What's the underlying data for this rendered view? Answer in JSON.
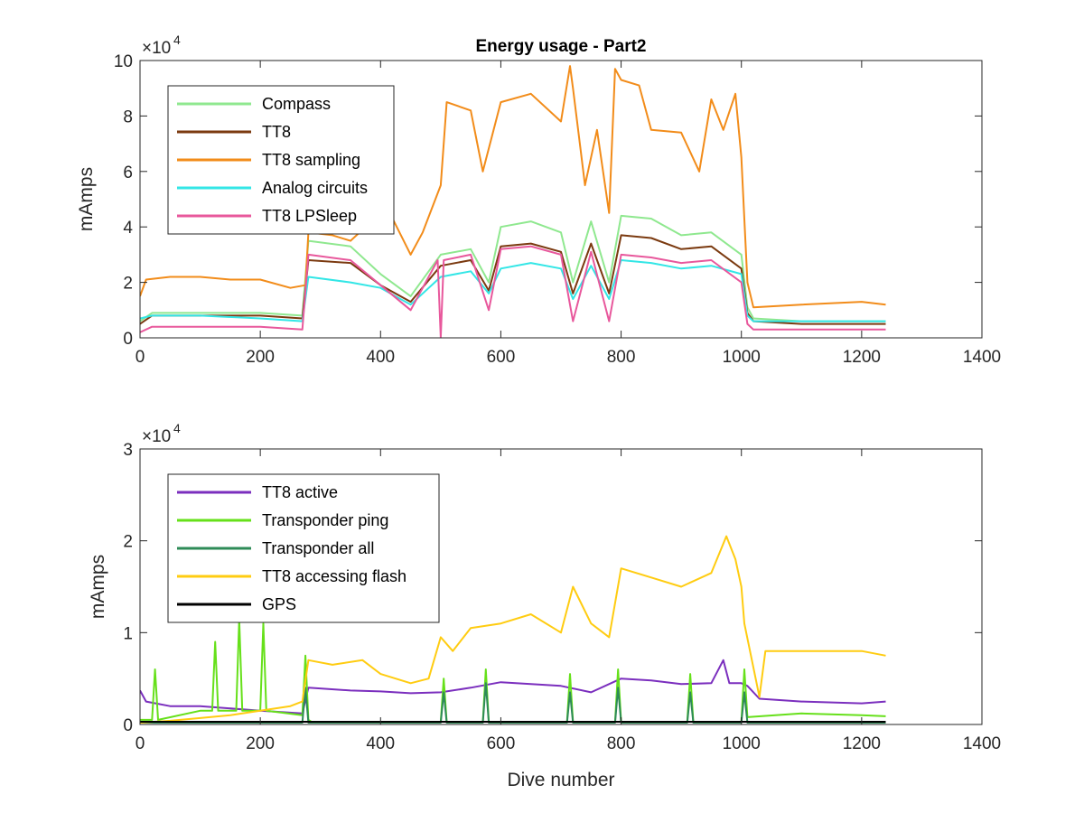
{
  "chart_data": [
    {
      "type": "line",
      "title": "Energy usage - Part2",
      "xlabel": "",
      "ylabel": "mAmps",
      "xlim": [
        0,
        1400
      ],
      "ylim": [
        0,
        100000
      ],
      "xticks": [
        0,
        200,
        400,
        600,
        800,
        1000,
        1200,
        1400
      ],
      "yticks": [
        0,
        20000,
        40000,
        60000,
        80000,
        100000
      ],
      "ytick_labels": [
        "0",
        "2",
        "4",
        "6",
        "8",
        "10"
      ],
      "y_exponent": {
        "base": "10",
        "power": "4"
      },
      "grid": false,
      "legend_position": "top-left",
      "series": [
        {
          "name": "Compass",
          "color": "#8fe88f",
          "x": [
            0,
            20,
            100,
            200,
            270,
            280,
            350,
            400,
            450,
            500,
            550,
            580,
            600,
            650,
            700,
            720,
            750,
            780,
            800,
            850,
            900,
            950,
            1000,
            1010,
            1020,
            1100,
            1200,
            1240
          ],
          "y": [
            6000,
            9000,
            9000,
            9000,
            8000,
            35000,
            33000,
            23000,
            15000,
            30000,
            32000,
            20000,
            40000,
            42000,
            38000,
            20000,
            42000,
            20000,
            44000,
            43000,
            37000,
            38000,
            30000,
            11000,
            7000,
            6000,
            6000,
            6000
          ]
        },
        {
          "name": "TT8",
          "color": "#7b3a10",
          "x": [
            0,
            20,
            100,
            200,
            270,
            280,
            350,
            400,
            450,
            500,
            550,
            580,
            600,
            650,
            700,
            720,
            750,
            780,
            800,
            850,
            900,
            950,
            1000,
            1010,
            1020,
            1100,
            1200,
            1240
          ],
          "y": [
            5000,
            8000,
            8000,
            8000,
            7000,
            28000,
            27000,
            19000,
            13000,
            26000,
            28000,
            17000,
            33000,
            34000,
            31000,
            16000,
            34000,
            16000,
            37000,
            36000,
            32000,
            33000,
            25000,
            9000,
            6000,
            5000,
            5000,
            5000
          ]
        },
        {
          "name": "TT8 sampling",
          "color": "#f28c1a",
          "x": [
            0,
            10,
            50,
            100,
            150,
            200,
            250,
            275,
            280,
            320,
            350,
            400,
            420,
            450,
            470,
            500,
            510,
            550,
            570,
            600,
            650,
            700,
            715,
            720,
            740,
            760,
            780,
            790,
            800,
            830,
            850,
            900,
            930,
            950,
            970,
            990,
            1000,
            1010,
            1020,
            1100,
            1200,
            1240
          ],
          "y": [
            15000,
            21000,
            22000,
            22000,
            21000,
            21000,
            18000,
            19000,
            38000,
            37000,
            35000,
            45000,
            43000,
            30000,
            38000,
            55000,
            85000,
            82000,
            60000,
            85000,
            88000,
            78000,
            98000,
            90000,
            55000,
            75000,
            45000,
            97000,
            93000,
            91000,
            75000,
            74000,
            60000,
            86000,
            75000,
            88000,
            65000,
            20000,
            11000,
            12000,
            13000,
            12000
          ]
        },
        {
          "name": "Analog circuits",
          "color": "#33e6e6",
          "x": [
            0,
            20,
            100,
            200,
            270,
            280,
            350,
            400,
            450,
            500,
            550,
            580,
            600,
            650,
            700,
            720,
            750,
            780,
            800,
            850,
            900,
            950,
            1000,
            1010,
            1020,
            1100,
            1200,
            1240
          ],
          "y": [
            7000,
            8000,
            8000,
            7000,
            6000,
            22000,
            20000,
            18000,
            12000,
            22000,
            24000,
            16000,
            25000,
            27000,
            25000,
            14000,
            26000,
            14000,
            28000,
            27000,
            25000,
            26000,
            23000,
            8000,
            6000,
            6000,
            6000,
            6000
          ]
        },
        {
          "name": "TT8 LPSleep",
          "color": "#e8589c",
          "x": [
            0,
            20,
            100,
            200,
            270,
            280,
            350,
            400,
            450,
            495,
            500,
            505,
            550,
            580,
            600,
            650,
            700,
            720,
            750,
            780,
            800,
            850,
            900,
            950,
            1000,
            1010,
            1020,
            1100,
            1200,
            1240
          ],
          "y": [
            2000,
            4000,
            4000,
            4000,
            3000,
            30000,
            28000,
            19000,
            10000,
            28000,
            0,
            28000,
            30000,
            10000,
            32000,
            33000,
            30000,
            6000,
            31000,
            6000,
            30000,
            29000,
            27000,
            28000,
            20000,
            5000,
            3000,
            3000,
            3000,
            3000
          ]
        }
      ],
      "legend": [
        "Compass",
        "TT8",
        "TT8 sampling",
        "Analog circuits",
        "TT8 LPSleep"
      ]
    },
    {
      "type": "line",
      "title": "",
      "xlabel": "Dive number",
      "ylabel": "mAmps",
      "xlim": [
        0,
        1400
      ],
      "ylim": [
        0,
        30000
      ],
      "xticks": [
        0,
        200,
        400,
        600,
        800,
        1000,
        1200,
        1400
      ],
      "yticks": [
        0,
        10000,
        20000,
        30000
      ],
      "ytick_labels": [
        "0",
        "1",
        "2",
        "3"
      ],
      "y_exponent": {
        "base": "10",
        "power": "4"
      },
      "grid": false,
      "legend_position": "top-left",
      "series": [
        {
          "name": "TT8 active",
          "color": "#7b2fbe",
          "x": [
            0,
            10,
            50,
            100,
            200,
            270,
            280,
            350,
            400,
            450,
            500,
            550,
            600,
            650,
            700,
            750,
            800,
            850,
            900,
            950,
            970,
            980,
            1000,
            1010,
            1030,
            1100,
            1200,
            1240
          ],
          "y": [
            3700,
            2500,
            2000,
            2000,
            1500,
            1200,
            4000,
            3700,
            3600,
            3400,
            3500,
            4000,
            4600,
            4400,
            4200,
            3500,
            5000,
            4800,
            4400,
            4500,
            7000,
            4500,
            4500,
            4200,
            2800,
            2500,
            2300,
            2500
          ]
        },
        {
          "name": "Transponder ping",
          "color": "#66e01a",
          "x": [
            0,
            20,
            25,
            30,
            100,
            120,
            125,
            130,
            160,
            165,
            170,
            200,
            205,
            210,
            270,
            275,
            280,
            285,
            400,
            500,
            505,
            510,
            570,
            575,
            580,
            710,
            715,
            720,
            790,
            795,
            800,
            910,
            915,
            920,
            1000,
            1005,
            1010,
            1100,
            1200,
            1240
          ],
          "y": [
            500,
            500,
            6000,
            500,
            1500,
            1500,
            9000,
            1500,
            1500,
            11500,
            1500,
            1500,
            11000,
            1500,
            1000,
            7500,
            500,
            300,
            300,
            300,
            5000,
            300,
            300,
            6000,
            300,
            300,
            5500,
            300,
            300,
            6000,
            300,
            300,
            5500,
            300,
            300,
            6000,
            800,
            1200,
            1000,
            900
          ]
        },
        {
          "name": "Transponder all",
          "color": "#2e8b57",
          "x": [
            0,
            270,
            275,
            280,
            500,
            505,
            510,
            570,
            575,
            580,
            710,
            715,
            720,
            790,
            795,
            800,
            910,
            915,
            920,
            1000,
            1005,
            1010,
            1240
          ],
          "y": [
            200,
            200,
            4000,
            200,
            200,
            3500,
            200,
            200,
            4500,
            200,
            200,
            3500,
            200,
            200,
            4000,
            200,
            200,
            3500,
            200,
            200,
            3500,
            200,
            200
          ]
        },
        {
          "name": "TT8 accessing flash",
          "color": "#ffcc11",
          "x": [
            0,
            50,
            100,
            150,
            200,
            250,
            270,
            280,
            320,
            370,
            400,
            450,
            480,
            500,
            520,
            550,
            600,
            650,
            700,
            720,
            750,
            780,
            800,
            850,
            900,
            950,
            975,
            990,
            1000,
            1005,
            1030,
            1040,
            1100,
            1200,
            1240
          ],
          "y": [
            200,
            400,
            700,
            1000,
            1500,
            2000,
            2500,
            7000,
            6500,
            7000,
            5500,
            4500,
            5000,
            9500,
            8000,
            10500,
            11000,
            12000,
            10000,
            15000,
            11000,
            9500,
            17000,
            16000,
            15000,
            16500,
            20500,
            18000,
            15000,
            11000,
            3000,
            8000,
            8000,
            8000,
            7500
          ]
        },
        {
          "name": "GPS",
          "color": "#000000",
          "x": [
            0,
            100,
            200,
            300,
            400,
            500,
            600,
            700,
            800,
            900,
            1000,
            1100,
            1200,
            1240
          ],
          "y": [
            300,
            300,
            300,
            300,
            300,
            300,
            300,
            300,
            300,
            300,
            300,
            300,
            300,
            300
          ]
        }
      ],
      "legend": [
        "TT8 active",
        "Transponder ping",
        "Transponder all",
        "TT8 accessing flash",
        "GPS"
      ]
    }
  ]
}
